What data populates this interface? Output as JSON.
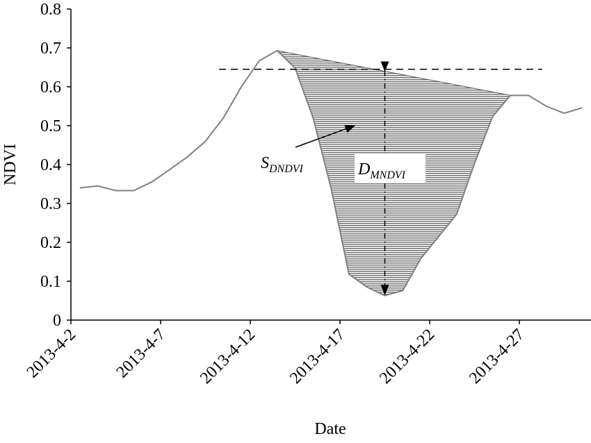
{
  "chart_data": {
    "type": "line",
    "x_label": "Date",
    "y_label": "NDVI",
    "x": [
      "2013-4-2",
      "2013-4-3",
      "2013-4-4",
      "2013-4-5",
      "2013-4-6",
      "2013-4-7",
      "2013-4-8",
      "2013-4-9",
      "2013-4-10",
      "2013-4-11",
      "2013-4-12",
      "2013-4-13",
      "2013-4-14",
      "2013-4-15",
      "2013-4-16",
      "2013-4-17",
      "2013-4-18",
      "2013-4-19",
      "2013-4-20",
      "2013-4-21",
      "2013-4-22",
      "2013-4-23",
      "2013-4-24",
      "2013-4-25",
      "2013-4-26",
      "2013-4-27",
      "2013-4-28",
      "2013-4-29",
      "2013-4-30"
    ],
    "xticks": [
      "2013-4-2",
      "2013-4-7",
      "2013-4-12",
      "2013-4-17",
      "2013-4-22",
      "2013-4-27"
    ],
    "series": [
      {
        "color": "#808080",
        "values": [
          0.34,
          0.345,
          0.333,
          0.333,
          0.355,
          0.387,
          0.42,
          0.46,
          0.52,
          0.6,
          0.667,
          0.693,
          0.648,
          0.52,
          0.34,
          0.118,
          0.085,
          0.063,
          0.076,
          0.158,
          0.215,
          0.272,
          0.403,
          0.523,
          0.578,
          0.578,
          0.55,
          0.532,
          0.546
        ]
      }
    ],
    "ylim": [
      0,
      0.8
    ],
    "yticks": [
      0,
      0.1,
      0.2,
      0.3,
      0.4,
      0.5,
      0.6,
      0.7,
      0.8
    ],
    "reference_line": 0.645,
    "shade": [
      "2013-4-13",
      "2013-4-26"
    ],
    "annotations": [
      {
        "text": "S",
        "sub": "DNDVI"
      },
      {
        "text": "D",
        "sub": "MNDVI"
      }
    ]
  }
}
